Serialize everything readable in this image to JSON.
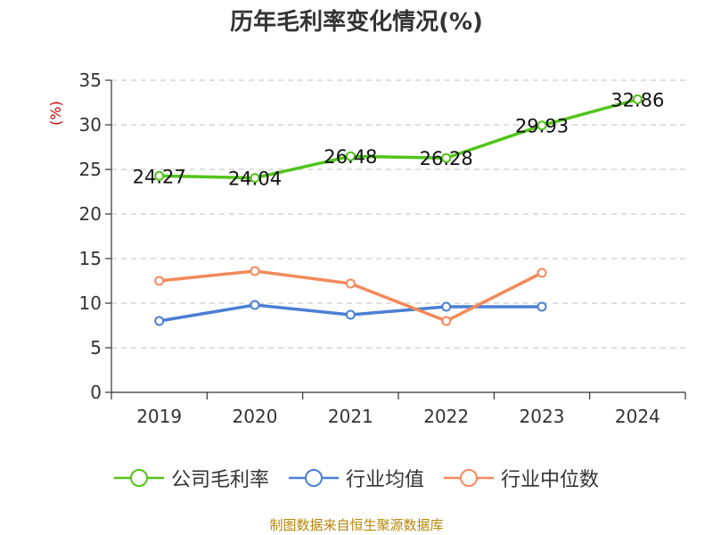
{
  "chart_data": {
    "type": "line",
    "title": "历年毛利率变化情况(%)",
    "ylabel": "(%)",
    "xlabel": "",
    "categories": [
      "2019",
      "2020",
      "2021",
      "2022",
      "2023",
      "2024"
    ],
    "ylim": [
      0,
      35
    ],
    "yticks": [
      0,
      5,
      10,
      15,
      20,
      25,
      30,
      35
    ],
    "grid": true,
    "legend_position": "bottom",
    "series": [
      {
        "name": "公司毛利率",
        "color": "#52c41a",
        "show_labels": true,
        "values": [
          24.27,
          24.04,
          26.48,
          26.28,
          29.93,
          32.86
        ],
        "labels": [
          "24.27",
          "24.04",
          "26.48",
          "26.28",
          "29.93",
          "32.86"
        ]
      },
      {
        "name": "行业均值",
        "color": "#4a7fd4",
        "show_labels": false,
        "values": [
          8.0,
          9.8,
          8.7,
          9.6,
          9.6,
          null
        ]
      },
      {
        "name": "行业中位数",
        "color": "#f4895a",
        "show_labels": false,
        "values": [
          12.5,
          13.6,
          12.2,
          8.0,
          13.4,
          null
        ]
      }
    ]
  },
  "source": "制图数据来自恒生聚源数据库"
}
